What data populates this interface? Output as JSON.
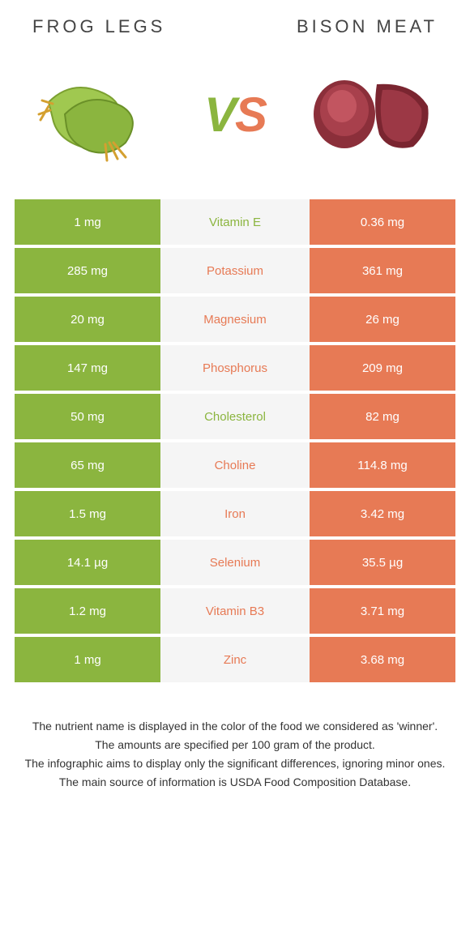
{
  "header": {
    "left_title": "Frog legs",
    "right_title": "Bison meat"
  },
  "vs": {
    "v": "V",
    "s": "S"
  },
  "colors": {
    "left_bg": "#8bb53f",
    "right_bg": "#e77a55",
    "mid_bg": "#f5f5f5",
    "green_text": "#8bb53f",
    "orange_text": "#e77a55"
  },
  "rows": [
    {
      "left": "1 mg",
      "label": "Vitamin E",
      "right": "0.36 mg",
      "winner": "left"
    },
    {
      "left": "285 mg",
      "label": "Potassium",
      "right": "361 mg",
      "winner": "right"
    },
    {
      "left": "20 mg",
      "label": "Magnesium",
      "right": "26 mg",
      "winner": "right"
    },
    {
      "left": "147 mg",
      "label": "Phosphorus",
      "right": "209 mg",
      "winner": "right"
    },
    {
      "left": "50 mg",
      "label": "Cholesterol",
      "right": "82 mg",
      "winner": "left"
    },
    {
      "left": "65 mg",
      "label": "Choline",
      "right": "114.8 mg",
      "winner": "right"
    },
    {
      "left": "1.5 mg",
      "label": "Iron",
      "right": "3.42 mg",
      "winner": "right"
    },
    {
      "left": "14.1 µg",
      "label": "Selenium",
      "right": "35.5 µg",
      "winner": "right"
    },
    {
      "left": "1.2 mg",
      "label": "Vitamin B3",
      "right": "3.71 mg",
      "winner": "right"
    },
    {
      "left": "1 mg",
      "label": "Zinc",
      "right": "3.68 mg",
      "winner": "right"
    }
  ],
  "footer": {
    "line1": "The nutrient name is displayed in the color of the food we considered as 'winner'.",
    "line2": "The amounts are specified per 100 gram of the product.",
    "line3": "The infographic aims to display only the significant differences, ignoring minor ones.",
    "line4": "The main source of information is USDA Food Composition Database."
  }
}
